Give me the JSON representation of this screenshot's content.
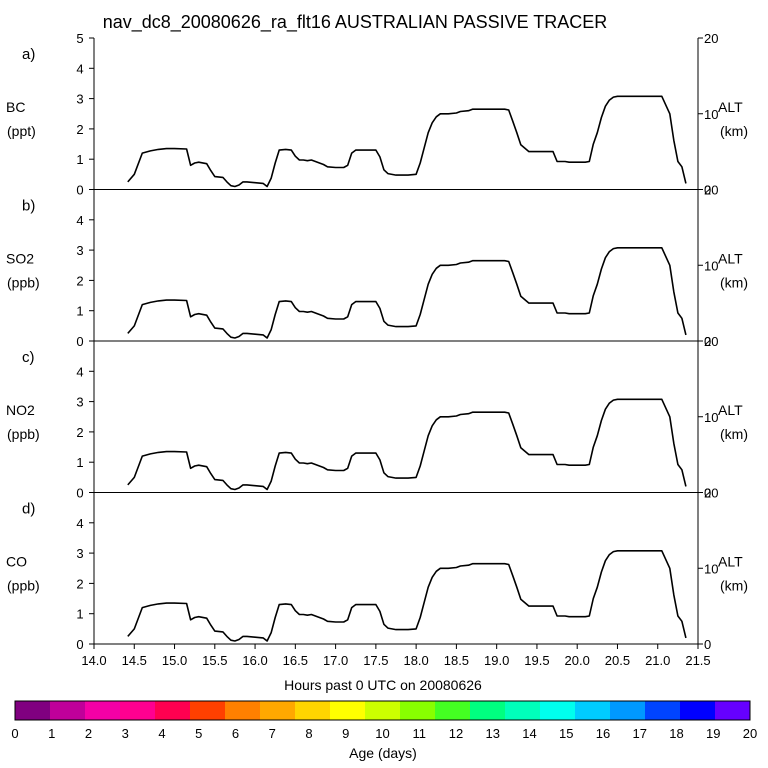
{
  "chart_data": {
    "type": "line",
    "title": "nav_dc8_20080626_ra_flt16 AUSTRALIAN PASSIVE TRACER",
    "xlabel": "Hours past 0 UTC on 20080626",
    "xlim": [
      14.0,
      21.5
    ],
    "x_ticks": [
      "14.0",
      "14.5",
      "15.0",
      "15.5",
      "16.0",
      "16.5",
      "17.0",
      "17.5",
      "18.0",
      "18.5",
      "19.0",
      "19.5",
      "20.0",
      "20.5",
      "21.0",
      "21.5"
    ],
    "ylim_left": [
      0,
      5
    ],
    "ylim_right": [
      0,
      20
    ],
    "right_axis": {
      "label": "ALT",
      "units": "(km)",
      "ticks": [
        "0",
        "10",
        "20"
      ]
    },
    "panels": [
      {
        "letter": "a)",
        "species": "BC",
        "units": "(ppt)",
        "left_ticks": [
          "0",
          "1",
          "2",
          "3",
          "4",
          "5"
        ]
      },
      {
        "letter": "b)",
        "species": "SO2",
        "units": "(ppb)",
        "left_ticks": [
          "0",
          "1",
          "2",
          "3",
          "4"
        ]
      },
      {
        "letter": "c)",
        "species": "NO2",
        "units": "(ppb)",
        "left_ticks": [
          "0",
          "1",
          "2",
          "3",
          "4"
        ]
      },
      {
        "letter": "d)",
        "species": "CO",
        "units": "(ppb)",
        "left_ticks": [
          "0",
          "1",
          "2",
          "3",
          "4"
        ]
      }
    ],
    "altitude_series": {
      "name": "ALT",
      "x": [
        14.42,
        14.5,
        14.6,
        14.7,
        14.8,
        14.9,
        15.0,
        15.15,
        15.2,
        15.25,
        15.3,
        15.4,
        15.45,
        15.5,
        15.6,
        15.65,
        15.7,
        15.75,
        15.8,
        15.85,
        15.9,
        16.0,
        16.1,
        16.15,
        16.2,
        16.25,
        16.3,
        16.38,
        16.45,
        16.5,
        16.55,
        16.6,
        16.65,
        16.7,
        16.85,
        16.9,
        17.0,
        17.1,
        17.15,
        17.2,
        17.25,
        17.3,
        17.4,
        17.5,
        17.55,
        17.6,
        17.65,
        17.75,
        17.8,
        17.9,
        18.0,
        18.05,
        18.1,
        18.15,
        18.2,
        18.25,
        18.3,
        18.35,
        18.4,
        18.5,
        18.55,
        18.65,
        18.7,
        18.8,
        18.9,
        19.0,
        19.1,
        19.15,
        19.2,
        19.25,
        19.3,
        19.4,
        19.45,
        19.5,
        19.6,
        19.7,
        19.75,
        19.85,
        19.9,
        20.0,
        20.1,
        20.15,
        20.2,
        20.25,
        20.3,
        20.35,
        20.4,
        20.45,
        20.5,
        20.6,
        20.7,
        20.8,
        20.9,
        21.0,
        21.05,
        21.15,
        21.2,
        21.25,
        21.3,
        21.35
      ],
      "y": [
        1.0,
        2.0,
        4.8,
        5.1,
        5.3,
        5.4,
        5.4,
        5.35,
        3.2,
        3.5,
        3.6,
        3.4,
        2.5,
        1.7,
        1.6,
        1.0,
        0.5,
        0.4,
        0.6,
        1.0,
        1.0,
        0.9,
        0.8,
        0.4,
        1.5,
        3.5,
        5.2,
        5.3,
        5.2,
        4.4,
        3.9,
        3.9,
        3.8,
        3.9,
        3.3,
        3.0,
        2.9,
        2.9,
        3.2,
        4.8,
        5.2,
        5.2,
        5.2,
        5.2,
        4.3,
        2.6,
        2.1,
        1.9,
        1.9,
        1.9,
        2.0,
        3.5,
        5.5,
        7.5,
        8.8,
        9.6,
        10.0,
        10.0,
        10.0,
        10.1,
        10.3,
        10.4,
        10.6,
        10.6,
        10.6,
        10.6,
        10.6,
        10.5,
        9.0,
        7.5,
        5.9,
        5.0,
        5.0,
        5.0,
        5.0,
        5.0,
        3.7,
        3.7,
        3.6,
        3.6,
        3.6,
        3.7,
        6.0,
        7.5,
        9.5,
        11.0,
        11.8,
        12.2,
        12.3,
        12.3,
        12.3,
        12.3,
        12.3,
        12.3,
        12.3,
        10.0,
        6.5,
        3.7,
        3.0,
        0.8
      ]
    }
  }
}
